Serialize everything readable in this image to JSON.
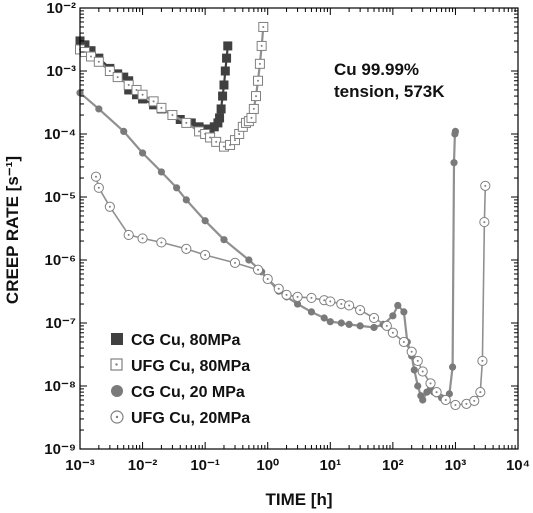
{
  "chart_data": {
    "type": "line",
    "xscale": "log",
    "yscale": "log",
    "xlim": [
      0.001,
      10000
    ],
    "ylim": [
      1e-09,
      0.01
    ],
    "xlabel": "TIME [h]",
    "ylabel": "CREEP RATE [s⁻¹]",
    "x_tick_labels": [
      "10⁻³",
      "10⁻²",
      "10⁻¹",
      "10⁰",
      "10¹",
      "10²",
      "10³",
      "10⁴"
    ],
    "y_tick_labels": [
      "10⁻⁹",
      "10⁻⁸",
      "10⁻⁷",
      "10⁻⁶",
      "10⁻⁵",
      "10⁻⁴",
      "10⁻³",
      "10⁻²"
    ],
    "annotation": [
      "Cu 99.99%",
      "tension, 573K"
    ],
    "grid": false,
    "legend_position": "bottom-left",
    "colors": {
      "cg": "#404040",
      "ufg": "#909090",
      "axis": "#000000"
    },
    "series": [
      {
        "name": "CG Cu, 80MPa",
        "marker": "filled-square",
        "x": [
          0.001,
          0.0012,
          0.0015,
          0.002,
          0.003,
          0.004,
          0.005,
          0.006,
          0.006,
          0.008,
          0.01,
          0.015,
          0.02,
          0.03,
          0.04,
          0.06,
          0.08,
          0.1,
          0.12,
          0.14,
          0.16,
          0.17,
          0.18,
          0.19,
          0.2,
          0.21,
          0.22,
          0.23
        ],
        "y": [
          0.003,
          0.0026,
          0.0021,
          0.0016,
          0.0011,
          0.0009,
          0.0008,
          0.0007,
          0.0005,
          0.00042,
          0.00036,
          0.00029,
          0.00025,
          0.0002,
          0.00017,
          0.00015,
          0.00013,
          0.00012,
          0.00012,
          0.00013,
          0.00015,
          0.00018,
          0.00025,
          0.0004,
          0.0006,
          0.001,
          0.0016,
          0.0025
        ]
      },
      {
        "name": "UFG Cu, 80MPa",
        "marker": "dotted-square",
        "x": [
          0.001,
          0.0012,
          0.0015,
          0.002,
          0.003,
          0.004,
          0.006,
          0.008,
          0.01,
          0.015,
          0.02,
          0.03,
          0.05,
          0.08,
          0.1,
          0.12,
          0.15,
          0.2,
          0.25,
          0.3,
          0.35,
          0.4,
          0.45,
          0.5,
          0.55,
          0.6,
          0.65,
          0.7,
          0.75,
          0.8,
          0.85
        ],
        "y": [
          0.0022,
          0.002,
          0.0017,
          0.0014,
          0.001,
          0.0008,
          0.0006,
          0.0005,
          0.00042,
          0.00033,
          0.00026,
          0.0002,
          0.00015,
          0.00011,
          0.0001,
          8.8e-05,
          7.5e-05,
          6.3e-05,
          6.7e-05,
          8e-05,
          0.0001,
          0.00013,
          0.00015,
          0.00016,
          0.00018,
          0.00025,
          0.0004,
          0.0007,
          0.0013,
          0.0025,
          0.005
        ]
      },
      {
        "name": "CG Cu, 20 MPa",
        "marker": "filled-circle",
        "x": [
          0.001,
          0.002,
          0.005,
          0.01,
          0.02,
          0.035,
          0.05,
          0.1,
          0.2,
          0.5,
          0.8,
          1,
          1.5,
          2,
          3,
          5,
          8,
          10,
          15,
          20,
          30,
          50,
          70,
          100,
          120,
          150,
          170,
          200,
          220,
          250,
          280,
          300,
          350,
          400,
          450,
          500,
          600,
          700,
          800,
          900,
          950,
          980,
          1000
        ],
        "y": [
          0.00045,
          0.00025,
          0.00011,
          5e-05,
          2.5e-05,
          1.4e-05,
          9e-06,
          4.2e-06,
          2.1e-06,
          1e-06,
          6.5e-07,
          5e-07,
          3.2e-07,
          2.6e-07,
          2e-07,
          1.5e-07,
          1.2e-07,
          1.05e-07,
          1e-07,
          9.5e-08,
          9e-08,
          8.5e-08,
          9.5e-08,
          1.3e-07,
          1.9e-07,
          1.5e-07,
          5e-08,
          3e-08,
          1.8e-08,
          1e-08,
          7e-09,
          6e-09,
          8e-09,
          9e-09,
          8e-09,
          7.5e-09,
          6.5e-09,
          6e-09,
          7.5e-09,
          2e-08,
          3.5e-05,
          0.0001,
          0.00011
        ]
      },
      {
        "name": "UFG Cu, 20MPa",
        "marker": "dotted-circle",
        "x": [
          0.0018,
          0.002,
          0.003,
          0.006,
          0.01,
          0.02,
          0.05,
          0.1,
          0.3,
          0.7,
          1,
          1.5,
          2,
          3,
          5,
          8,
          10,
          15,
          20,
          30,
          50,
          80,
          100,
          150,
          200,
          250,
          300,
          400,
          500,
          700,
          1000,
          1500,
          2000,
          2500,
          2700,
          2900,
          3000
        ],
        "y": [
          2.1e-05,
          1.4e-05,
          7e-06,
          2.5e-06,
          2.2e-06,
          1.9e-06,
          1.5e-06,
          1.2e-06,
          9e-07,
          7e-07,
          5e-07,
          3.5e-07,
          2.8e-07,
          2.6e-07,
          2.5e-07,
          2.3e-07,
          2.2e-07,
          2e-07,
          1.9e-07,
          1.6e-07,
          1.2e-07,
          9e-08,
          7e-08,
          5e-08,
          3.5e-08,
          2.5e-08,
          1.7e-08,
          1.1e-08,
          8e-09,
          6e-09,
          5e-09,
          5.2e-09,
          5.8e-09,
          8e-09,
          2.5e-08,
          4e-06,
          1.5e-05
        ]
      }
    ]
  }
}
